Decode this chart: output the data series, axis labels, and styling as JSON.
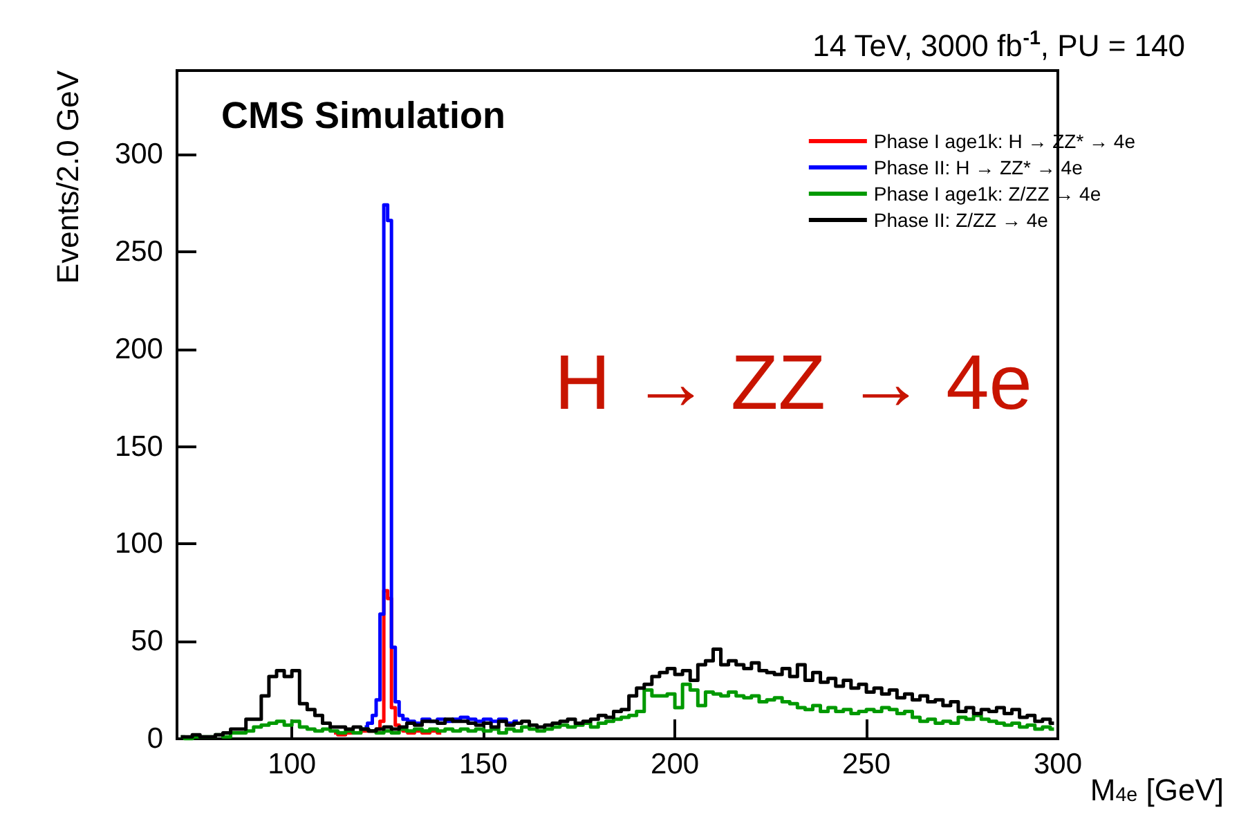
{
  "chart_data": {
    "type": "step",
    "title": "14 TeV, 3000 fb$^{-1}$, PU = 140",
    "xlabel": "M$_{4e}$ [GeV]",
    "ylabel": "Events/2.0 GeV",
    "annotations": [
      "CMS Simulation",
      "H → ZZ → 4e"
    ],
    "xlim": [
      70,
      300
    ],
    "xticks": [
      100,
      150,
      200,
      250,
      300
    ],
    "ylim": [
      0,
      343
    ],
    "yticks": [
      0,
      50,
      100,
      150,
      200,
      250,
      300
    ],
    "grid": false,
    "legend": "top right",
    "x": [
      71,
      73,
      75,
      77,
      79,
      81,
      83,
      85,
      87,
      89,
      91,
      93,
      95,
      97,
      99,
      101,
      103,
      105,
      107,
      109,
      111,
      113,
      115,
      117,
      119,
      121,
      123,
      125,
      127,
      129,
      131,
      133,
      135,
      137,
      139,
      141,
      143,
      145,
      147,
      149,
      151,
      153,
      155,
      157,
      159,
      161,
      163,
      165,
      167,
      169,
      171,
      173,
      175,
      177,
      179,
      181,
      183,
      185,
      187,
      189,
      191,
      193,
      195,
      197,
      199,
      201,
      203,
      205,
      207,
      209,
      211,
      213,
      215,
      217,
      219,
      221,
      223,
      225,
      227,
      229,
      231,
      233,
      235,
      237,
      239,
      241,
      243,
      245,
      247,
      249,
      251,
      253,
      255,
      257,
      259,
      261,
      263,
      265,
      267,
      269,
      271,
      273,
      275,
      277,
      279,
      281,
      283,
      285,
      287,
      289,
      291,
      293,
      295,
      297,
      299
    ],
    "series": [
      {
        "name": "Phase I age1k: H → ZZ* → 4e",
        "color": "#ff0000",
        "x": [
          111,
          113,
          115,
          117,
          119,
          120.5,
          121.5,
          122.5,
          123.5,
          124.5,
          125.5,
          126.5,
          127.5,
          128.5,
          129.5,
          131,
          133,
          135,
          137,
          139
        ],
        "values": [
          3,
          2,
          3,
          3,
          4,
          4,
          4,
          5,
          9,
          76,
          72,
          16,
          7,
          5,
          4,
          3,
          4,
          3,
          4,
          3
        ]
      },
      {
        "name": "Phase II: H → ZZ* → 4e",
        "color": "#0000ff",
        "x": [
          119,
          120.5,
          121.5,
          122.5,
          123.5,
          124.5,
          125.5,
          126.5,
          127.5,
          128.5,
          129.5,
          131,
          133,
          135,
          137,
          139,
          141,
          143,
          145,
          147,
          149,
          151,
          153,
          155,
          157,
          159
        ],
        "values": [
          6,
          8,
          12,
          20,
          64,
          274,
          266,
          47,
          19,
          12,
          10,
          9,
          8,
          10,
          9,
          10,
          9,
          10,
          11,
          10,
          9,
          10,
          9,
          10,
          8,
          9
        ]
      },
      {
        "name": "Phase I age1k: Z/ZZ → 4e",
        "color": "#009900",
        "values": [
          1,
          0,
          1,
          1,
          1,
          2,
          1,
          3,
          3,
          4,
          6,
          7,
          8,
          9,
          7,
          9,
          6,
          5,
          4,
          5,
          4,
          3,
          4,
          3,
          5,
          4,
          3,
          4,
          3,
          5,
          4,
          5,
          4,
          5,
          4,
          5,
          4,
          5,
          4,
          5,
          4,
          5,
          3,
          5,
          4,
          6,
          5,
          4,
          5,
          6,
          7,
          6,
          7,
          8,
          6,
          8,
          9,
          10,
          11,
          12,
          14,
          25,
          22,
          22,
          23,
          16,
          28,
          25,
          17,
          24,
          23,
          22,
          24,
          22,
          21,
          22,
          19,
          20,
          21,
          19,
          18,
          16,
          15,
          17,
          14,
          16,
          14,
          15,
          13,
          14,
          15,
          14,
          16,
          15,
          13,
          14,
          11,
          9,
          10,
          8,
          9,
          8,
          11,
          10,
          12,
          10,
          9,
          8,
          7,
          8,
          6,
          7,
          5,
          6,
          5
        ]
      },
      {
        "name": "Phase II: Z/ZZ → 4e",
        "color": "#000000",
        "values": [
          1,
          1,
          2,
          1,
          1,
          2,
          3,
          5,
          5,
          10,
          10,
          22,
          32,
          35,
          32,
          35,
          18,
          15,
          12,
          8,
          6,
          6,
          5,
          6,
          5,
          4,
          5,
          6,
          5,
          6,
          8,
          7,
          9,
          9,
          8,
          10,
          9,
          9,
          8,
          7,
          8,
          6,
          9,
          7,
          8,
          9,
          7,
          6,
          7,
          8,
          9,
          10,
          8,
          9,
          10,
          12,
          11,
          14,
          15,
          22,
          26,
          28,
          32,
          34,
          36,
          33,
          35,
          30,
          38,
          40,
          46,
          38,
          40,
          38,
          36,
          39,
          35,
          34,
          33,
          36,
          32,
          38,
          30,
          34,
          29,
          31,
          27,
          30,
          26,
          28,
          24,
          26,
          23,
          25,
          21,
          23,
          20,
          22,
          19,
          20,
          17,
          19,
          14,
          16,
          13,
          15,
          14,
          16,
          13,
          15,
          11,
          12,
          9,
          10,
          8
        ]
      }
    ]
  }
}
